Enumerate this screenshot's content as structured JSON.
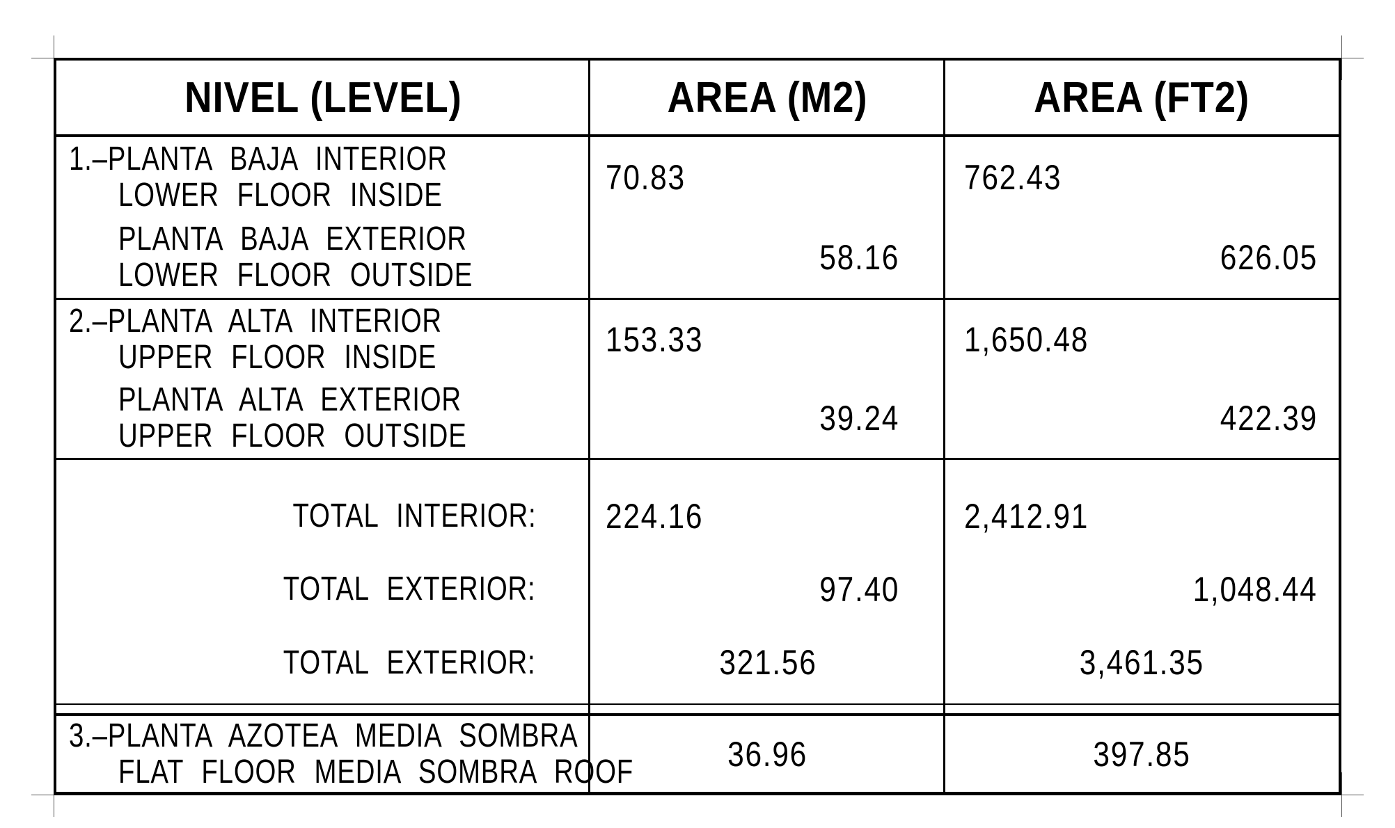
{
  "colors": {
    "ink": "#000000",
    "tick": "#555555",
    "background": "#ffffff"
  },
  "table": {
    "headers": {
      "level": "NIVEL (LEVEL)",
      "area_m2": "AREA (M2)",
      "area_ft2": "AREA (FT2)"
    },
    "rows": [
      {
        "sub": [
          {
            "label_line1": "1.–PLANTA BAJA INTERIOR",
            "label_line2": "LOWER FLOOR INSIDE",
            "m2": "70.83",
            "ft2": "762.43"
          },
          {
            "label_line1": "PLANTA BAJA EXTERIOR",
            "label_line2": "LOWER FLOOR OUTSIDE",
            "m2": "58.16",
            "ft2": "626.05"
          }
        ]
      },
      {
        "sub": [
          {
            "label_line1": "2.–PLANTA ALTA INTERIOR",
            "label_line2": "UPPER FLOOR INSIDE",
            "m2": "153.33",
            "ft2": "1,650.48"
          },
          {
            "label_line1": "PLANTA ALTA EXTERIOR",
            "label_line2": "UPPER FLOOR OUTSIDE",
            "m2": "39.24",
            "ft2": "422.39"
          }
        ]
      }
    ],
    "totals": [
      {
        "label": "TOTAL INTERIOR:",
        "m2": "224.16",
        "ft2": "2,412.91"
      },
      {
        "label": "TOTAL EXTERIOR:",
        "m2": "97.40",
        "ft2": "1,048.44"
      },
      {
        "label": "TOTAL EXTERIOR:",
        "m2": "321.56",
        "ft2": "3,461.35"
      }
    ],
    "row3": {
      "label_line1": "3.–PLANTA AZOTEA MEDIA SOMBRA",
      "label_line2": "FLAT FLOOR MEDIA SOMBRA ROOF",
      "m2": "36.96",
      "ft2": "397.85"
    }
  }
}
